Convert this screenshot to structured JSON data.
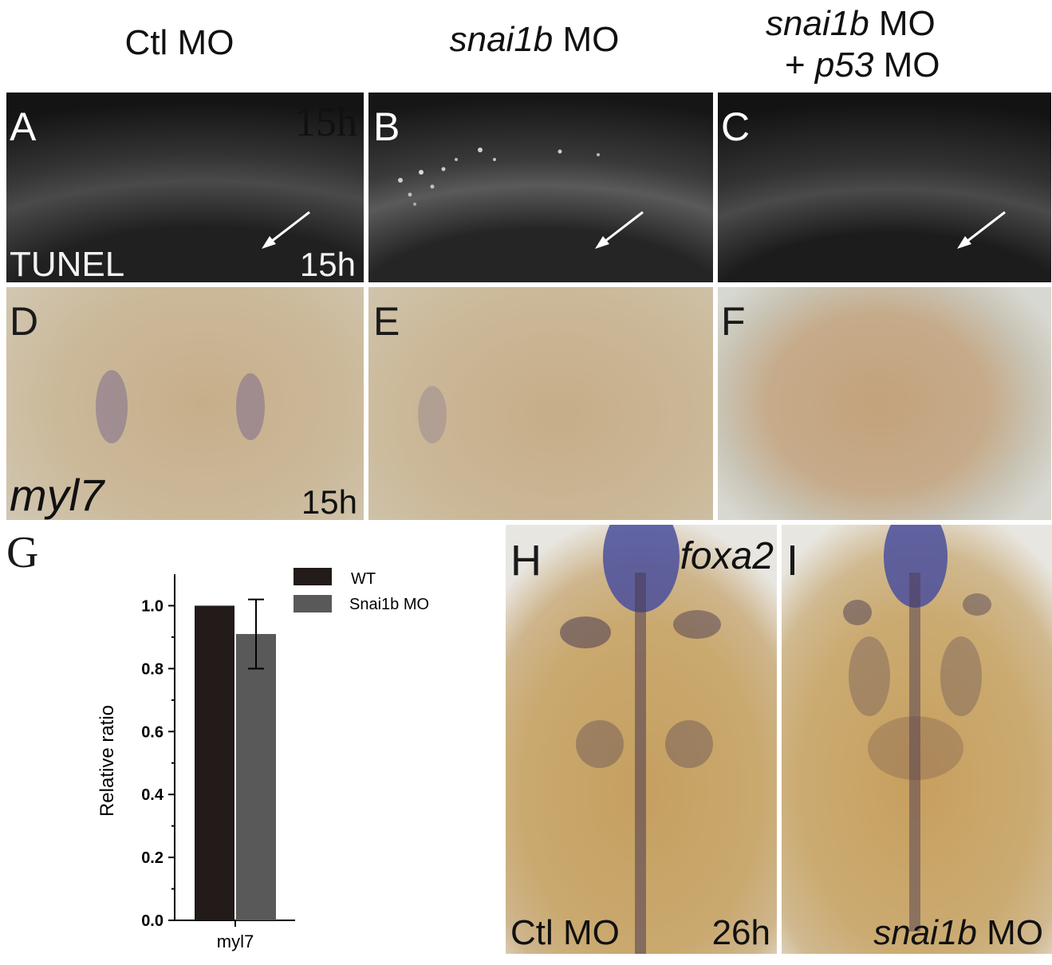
{
  "columns": {
    "ctl": "Ctl MO",
    "snai": {
      "italic": "snai1b",
      "rest": " MO"
    },
    "combo": {
      "line1_italic": "snai1b",
      "line1_rest": " MO",
      "line2_prefix": "+ ",
      "line2_italic": "p53",
      "line2_rest": " MO"
    }
  },
  "panels": {
    "A": {
      "label": "A",
      "stain": "TUNEL",
      "time": "15h",
      "ghost_time": "15h"
    },
    "B": {
      "label": "B"
    },
    "C": {
      "label": "C"
    },
    "D": {
      "label": "D",
      "gene": "myl7",
      "time": "15h"
    },
    "E": {
      "label": "E"
    },
    "F": {
      "label": "F"
    },
    "G": {
      "label": "G"
    },
    "H": {
      "label": "H",
      "gene": "foxa2",
      "caption": "Ctl MO",
      "time": "26h"
    },
    "I": {
      "label": "I",
      "caption_italic": "snai1b",
      "caption_rest": " MO"
    }
  },
  "colors": {
    "tunel_bg": "#2a2a2a",
    "ish_bg": "#cdbb9c",
    "foxa2_bg": "#c8a56a",
    "wt_bar": "#231a1a",
    "mo_bar": "#595959",
    "stain": "#4a4f9e"
  },
  "chart_data": {
    "type": "bar",
    "categories": [
      "myl7"
    ],
    "series": [
      {
        "name": "WT",
        "values": [
          1.0
        ],
        "color": "#231a1a"
      },
      {
        "name": "Snai1b MO",
        "values": [
          0.91
        ],
        "error": [
          0.11
        ],
        "color": "#595959"
      }
    ],
    "title": "",
    "xlabel": "",
    "ylabel": "Relative ratio",
    "ylim": [
      0,
      1.1
    ],
    "yticks": [
      "0.0",
      "0.2",
      "0.4",
      "0.6",
      "0.8",
      "1.0"
    ],
    "legend": "top-right"
  }
}
